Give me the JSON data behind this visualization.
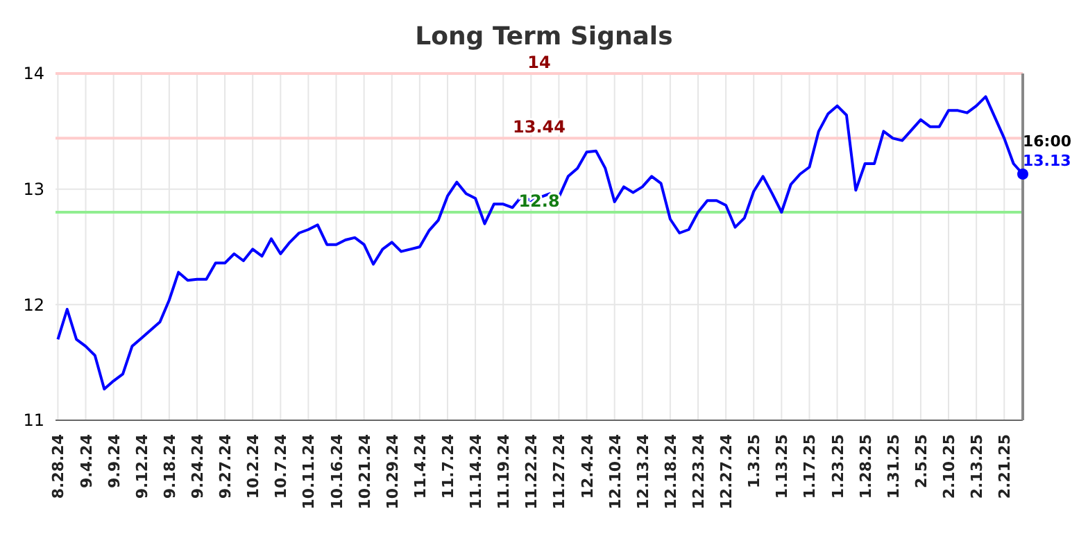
{
  "chart_data": {
    "type": "line",
    "title": "Long Term Signals",
    "categories": [
      "8.28.24",
      null,
      null,
      "9.4.24",
      null,
      null,
      "9.9.24",
      null,
      null,
      "9.12.24",
      null,
      null,
      "9.18.24",
      null,
      null,
      "9.24.24",
      null,
      null,
      "9.27.24",
      null,
      null,
      "10.2.24",
      null,
      null,
      "10.7.24",
      null,
      null,
      "10.11.24",
      null,
      null,
      "10.16.24",
      null,
      null,
      "10.21.24",
      null,
      null,
      "10.29.24",
      null,
      null,
      "11.4.24",
      null,
      null,
      "11.7.24",
      null,
      null,
      "11.14.24",
      null,
      null,
      "11.19.24",
      null,
      null,
      "11.22.24",
      null,
      null,
      "11.27.24",
      null,
      null,
      "12.4.24",
      null,
      null,
      "12.10.24",
      null,
      null,
      "12.13.24",
      null,
      null,
      "12.18.24",
      null,
      null,
      "12.23.24",
      null,
      null,
      "12.27.24",
      null,
      null,
      "1.3.25",
      null,
      null,
      "1.13.25",
      null,
      null,
      "1.17.25",
      null,
      null,
      "1.23.25",
      null,
      null,
      "1.28.25",
      null,
      null,
      "1.31.25",
      null,
      null,
      "2.5.25",
      null,
      null,
      "2.10.25",
      null,
      null,
      "2.13.25",
      null,
      null,
      "2.21.25",
      null,
      null
    ],
    "series": [
      {
        "color": "#0000ff",
        "values": [
          11.7,
          11.96,
          11.7,
          11.64,
          11.56,
          11.27,
          11.34,
          11.4,
          11.64,
          11.71,
          11.78,
          11.85,
          12.04,
          12.28,
          12.21,
          12.22,
          12.22,
          12.36,
          12.36,
          12.44,
          12.38,
          12.48,
          12.42,
          12.57,
          12.44,
          12.54,
          12.62,
          12.65,
          12.69,
          12.52,
          12.52,
          12.56,
          12.58,
          12.52,
          12.35,
          12.48,
          12.54,
          12.46,
          12.48,
          12.5,
          12.64,
          12.73,
          12.94,
          13.06,
          12.96,
          12.92,
          12.7,
          12.87,
          12.87,
          12.84,
          12.94,
          12.9,
          12.93,
          12.96,
          12.93,
          13.11,
          13.18,
          13.32,
          13.33,
          13.18,
          12.89,
          13.02,
          12.97,
          13.02,
          13.11,
          13.05,
          12.74,
          12.62,
          12.65,
          12.8,
          12.9,
          12.9,
          12.86,
          12.67,
          12.75,
          12.98,
          13.11,
          12.96,
          12.8,
          13.04,
          13.13,
          13.19,
          13.5,
          13.65,
          13.72,
          13.64,
          12.99,
          13.22,
          13.22,
          13.5,
          13.44,
          13.42,
          13.51,
          13.6,
          13.54,
          13.54,
          13.68,
          13.68,
          13.66,
          13.72,
          13.8,
          13.62,
          13.44,
          13.22,
          13.13
        ],
        "value_labels": [
          null,
          null,
          null,
          null,
          null,
          null,
          null,
          null,
          null,
          null,
          null,
          null,
          null,
          null,
          null,
          null,
          null,
          null,
          null,
          null,
          null,
          null,
          null,
          null,
          null,
          null,
          null,
          null,
          null,
          null,
          null,
          null,
          null,
          null,
          null,
          null,
          null,
          null,
          null,
          null,
          null,
          null,
          null,
          null,
          null,
          null,
          null,
          null,
          null,
          null,
          null,
          null,
          null,
          null,
          null,
          null,
          null,
          null,
          null,
          null,
          null,
          null,
          null,
          null,
          null,
          null,
          null,
          null,
          null,
          null,
          null,
          null,
          null,
          null,
          null,
          null,
          null,
          null,
          null,
          null,
          null,
          null,
          null,
          null,
          null,
          null,
          null,
          null,
          null,
          null,
          null,
          null,
          null,
          null,
          null,
          null,
          null,
          null,
          null,
          null,
          null,
          null,
          null,
          null,
          "13.13"
        ]
      }
    ],
    "ylim": [
      11,
      14
    ],
    "yticks": [
      11,
      12,
      13,
      14
    ],
    "grid": true,
    "marker": "none",
    "line_style": "solid",
    "ref_lines": [
      {
        "axis": "y",
        "value": 14,
        "label": "14",
        "color": "#ffcccc"
      },
      {
        "axis": "y",
        "value": 13.44,
        "label": "13.44",
        "color": "#ffcccc"
      },
      {
        "axis": "y",
        "value": 12.8,
        "label": "12.8",
        "color": "#90ee90"
      }
    ],
    "annotations": [
      "16:00"
    ]
  }
}
